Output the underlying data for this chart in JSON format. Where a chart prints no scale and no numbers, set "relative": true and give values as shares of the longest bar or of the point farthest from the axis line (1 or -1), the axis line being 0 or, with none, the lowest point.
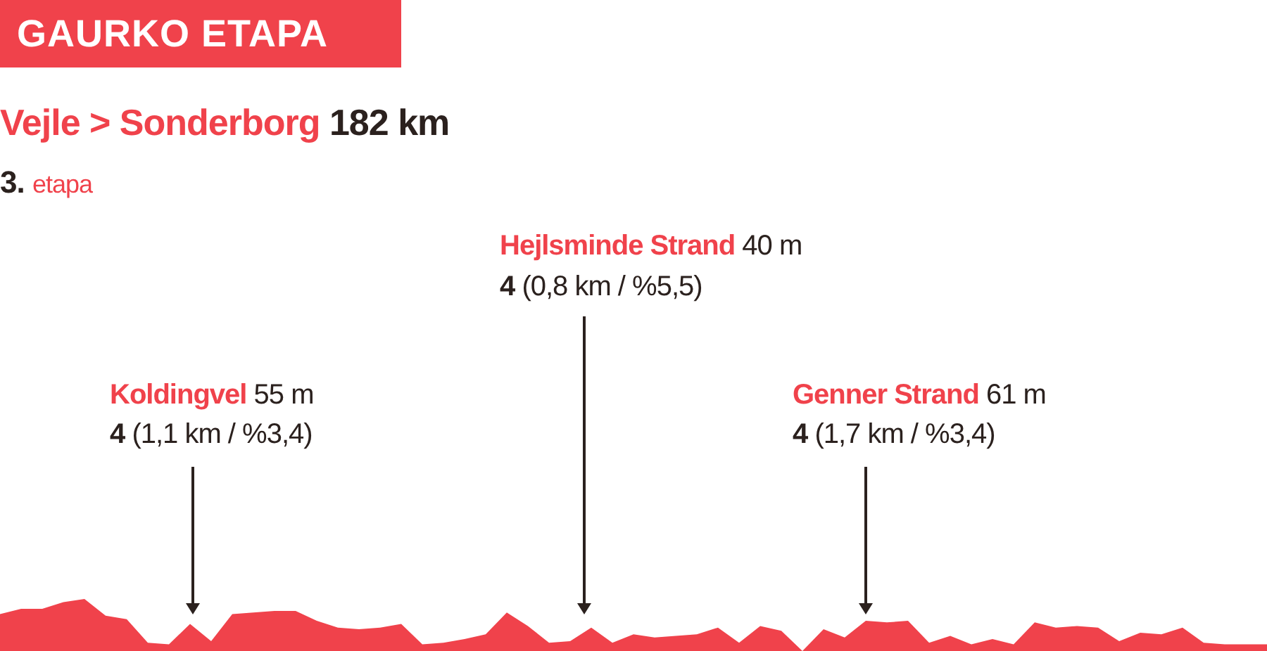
{
  "chart_data": {
    "type": "area",
    "relative": true,
    "title": "GAURKO ETAPA",
    "subtitle": "Vejle > Sonderborg 182 km",
    "annotations": [
      "3. etapa",
      "Koldingvel 55 m",
      "4 (1,1 km / %3,4)",
      "Hejlsminde Strand 40 m",
      "4 (0,8 km / %5,5)",
      "Genner Strand 61 m",
      "4 (1,7 km / %3,4)"
    ],
    "categories": [
      null,
      null,
      null,
      null,
      null,
      null,
      null,
      null,
      null,
      null,
      null,
      null,
      null,
      null,
      null,
      null,
      null,
      null,
      null,
      null,
      null,
      null,
      null,
      null,
      null,
      null,
      null,
      null,
      null,
      null,
      null,
      null,
      null,
      null,
      null,
      null,
      null,
      null,
      null,
      null,
      null,
      null,
      null,
      null,
      null,
      null,
      null,
      null,
      null,
      null,
      null,
      null,
      null,
      null,
      null,
      null,
      null,
      null,
      null,
      null,
      null
    ],
    "color": "#f0424b",
    "values": [
      0.71,
      0.81,
      0.81,
      0.94,
      1,
      0.68,
      0.61,
      0.16,
      0.13,
      0.52,
      0.19,
      0.71,
      0.74,
      0.77,
      0.77,
      0.58,
      0.45,
      0.42,
      0.45,
      0.52,
      0.13,
      0.16,
      0.23,
      0.32,
      0.74,
      0.48,
      0.16,
      0.19,
      0.45,
      0.16,
      0.32,
      0.26,
      0.29,
      0.32,
      0.45,
      0.16,
      0.48,
      0.39,
      0,
      0.42,
      0.26,
      0.58,
      0.55,
      0.58,
      0.16,
      0.29,
      0.13,
      0.23,
      0.13,
      0.55,
      0.45,
      0.48,
      0.45,
      0.19,
      0.35,
      0.32,
      0.45,
      0.16,
      0.13,
      0.13,
      0.13
    ]
  }
}
